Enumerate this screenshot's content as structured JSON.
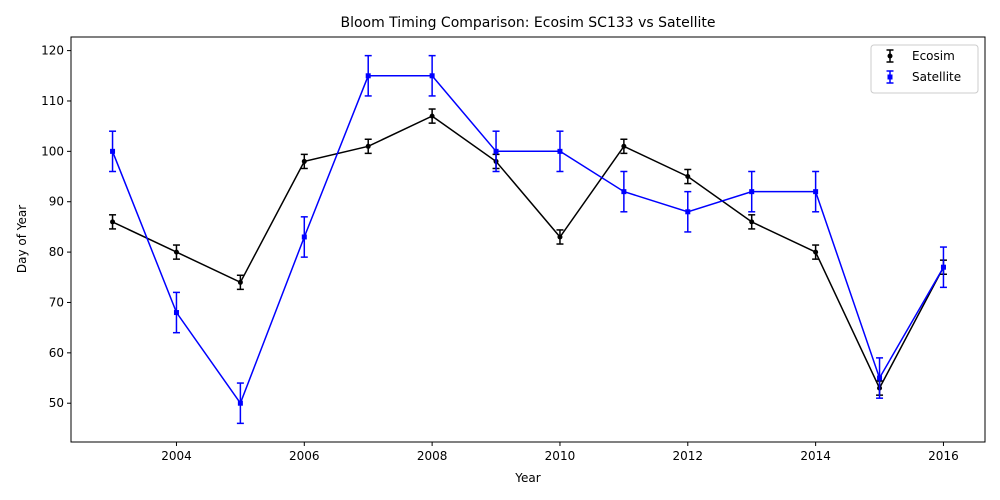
{
  "chart_data": {
    "type": "line",
    "title": "Bloom Timing Comparison: Ecosim SC133 vs Satellite",
    "xlabel": "Year",
    "ylabel": "Day of Year",
    "xlim": [
      2002.35,
      2016.65
    ],
    "ylim": [
      42.3,
      122.7
    ],
    "xticks": [
      2004,
      2006,
      2008,
      2010,
      2012,
      2014,
      2016
    ],
    "yticks": [
      50,
      60,
      70,
      80,
      90,
      100,
      110,
      120
    ],
    "grid": false,
    "legend_position": "top-right",
    "series": [
      {
        "name": "Ecosim",
        "color": "#000000",
        "marker": "circle",
        "x": [
          2003,
          2004,
          2005,
          2006,
          2007,
          2008,
          2009,
          2010,
          2011,
          2012,
          2013,
          2014,
          2015,
          2016
        ],
        "y": [
          86,
          80,
          74,
          98,
          101,
          107,
          98,
          83,
          101,
          95,
          86,
          80,
          53,
          77
        ],
        "error": [
          1.4,
          1.4,
          1.4,
          1.4,
          1.4,
          1.4,
          1.4,
          1.4,
          1.4,
          1.4,
          1.4,
          1.4,
          1.4,
          1.4
        ]
      },
      {
        "name": "Satellite",
        "color": "#0000ff",
        "marker": "square",
        "x": [
          2003,
          2004,
          2005,
          2006,
          2007,
          2008,
          2009,
          2010,
          2011,
          2012,
          2013,
          2014,
          2015,
          2016
        ],
        "y": [
          100,
          68,
          50,
          83,
          115,
          115,
          100,
          100,
          92,
          88,
          92,
          92,
          55,
          77
        ],
        "error": [
          4,
          4,
          4,
          4,
          4,
          4,
          4,
          4,
          4,
          4,
          4,
          4,
          4,
          4
        ]
      }
    ]
  }
}
